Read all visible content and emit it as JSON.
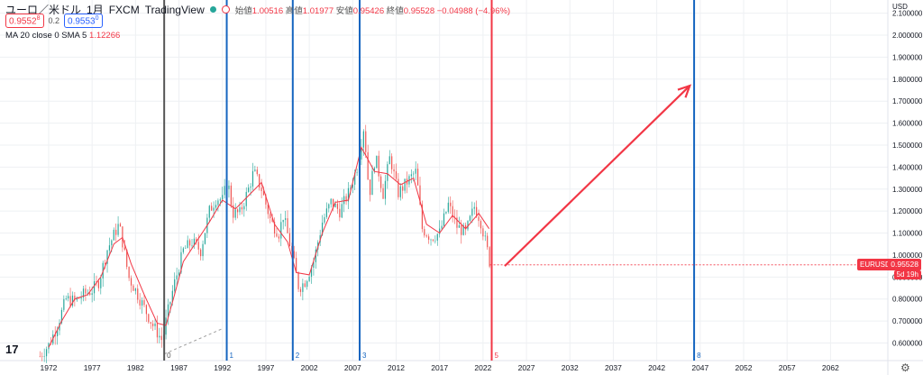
{
  "header": {
    "symbol": "ユーロ／米ドル",
    "interval": "1月",
    "exchange": "FXCM",
    "source": "TradingView",
    "ohlc": [
      {
        "label": "始値",
        "value": "1.00516"
      },
      {
        "label": "高値",
        "value": "1.01977"
      },
      {
        "label": "安値",
        "value": "0.95426"
      },
      {
        "label": "終値",
        "value": "0.95528"
      }
    ],
    "change": "−0.04988 (−4.96%)",
    "sell_price": "0.9552",
    "sell_sup": "8",
    "spread": "0.2",
    "buy_price": "0.9553",
    "buy_sup": "0",
    "indicator_label": "MA 20 close 0 SMA 5",
    "indicator_value": "1.12266",
    "logo": "17"
  },
  "price_axis": {
    "currency": "USD",
    "current_symbol": "EURUSD",
    "current_price": "0.95528",
    "countdown": "5d 19h"
  },
  "chart_data": {
    "type": "line",
    "title": "",
    "xlabel": "",
    "ylabel": "",
    "x_ticks": [
      1972,
      1977,
      1982,
      1987,
      1992,
      1997,
      2002,
      2007,
      2012,
      2017,
      2022,
      2027,
      2032,
      2037,
      2042,
      2047,
      2052,
      2057,
      2062
    ],
    "y_ticks": [
      "0.600000",
      "0.700000",
      "0.800000",
      "0.900000",
      "1.000000",
      "1.100000",
      "1.200000",
      "1.300000",
      "1.400000",
      "1.500000",
      "1.600000",
      "1.700000",
      "1.800000",
      "1.900000",
      "2.000000",
      "2.100000"
    ],
    "xlim": [
      1966.4,
      2068.6
    ],
    "ylim": [
      0.52,
      2.16
    ],
    "colors": {
      "up": "#26a69a",
      "down": "#ef5350",
      "ma": "#f23645",
      "vline_blue": "#1565c0",
      "vline_gray": "#555555",
      "vline_red": "#f23645",
      "arrow": "#f23645"
    },
    "series": [
      {
        "name": "EURUSD",
        "points": [
          [
            1971.0,
            0.54
          ],
          [
            1972.0,
            0.59
          ],
          [
            1973.0,
            0.68
          ],
          [
            1974.0,
            0.8
          ],
          [
            1975.0,
            0.79
          ],
          [
            1976.0,
            0.82
          ],
          [
            1977.0,
            0.84
          ],
          [
            1977.8,
            0.88
          ],
          [
            1978.7,
            1.02
          ],
          [
            1979.6,
            1.1
          ],
          [
            1980.1,
            1.14
          ],
          [
            1980.6,
            1.04
          ],
          [
            1981.2,
            0.9
          ],
          [
            1982.0,
            0.84
          ],
          [
            1983.0,
            0.76
          ],
          [
            1984.0,
            0.68
          ],
          [
            1985.1,
            0.61
          ],
          [
            1985.6,
            0.72
          ],
          [
            1986.4,
            0.86
          ],
          [
            1987.5,
            1.02
          ],
          [
            1988.5,
            1.06
          ],
          [
            1989.5,
            1.02
          ],
          [
            1990.5,
            1.2
          ],
          [
            1991.3,
            1.26
          ],
          [
            1992.0,
            1.25
          ],
          [
            1992.6,
            1.34
          ],
          [
            1993.2,
            1.19
          ],
          [
            1994.0,
            1.19
          ],
          [
            1995.0,
            1.3
          ],
          [
            1995.6,
            1.38
          ],
          [
            1996.5,
            1.3
          ],
          [
            1997.6,
            1.15
          ],
          [
            1998.5,
            1.1
          ],
          [
            1999.0,
            1.18
          ],
          [
            2000.0,
            1.01
          ],
          [
            2000.8,
            0.85
          ],
          [
            2001.5,
            0.88
          ],
          [
            2002.5,
            0.97
          ],
          [
            2003.5,
            1.15
          ],
          [
            2004.5,
            1.24
          ],
          [
            2005.5,
            1.2
          ],
          [
            2006.5,
            1.28
          ],
          [
            2007.5,
            1.4
          ],
          [
            2008.3,
            1.59
          ],
          [
            2008.9,
            1.27
          ],
          [
            2009.6,
            1.45
          ],
          [
            2010.5,
            1.28
          ],
          [
            2011.3,
            1.45
          ],
          [
            2012.2,
            1.28
          ],
          [
            2013.2,
            1.33
          ],
          [
            2014.3,
            1.38
          ],
          [
            2015.0,
            1.12
          ],
          [
            2016.0,
            1.08
          ],
          [
            2017.0,
            1.1
          ],
          [
            2018.0,
            1.23
          ],
          [
            2019.0,
            1.13
          ],
          [
            2020.0,
            1.1
          ],
          [
            2021.0,
            1.22
          ],
          [
            2021.7,
            1.16
          ],
          [
            2022.5,
            1.02
          ],
          [
            2022.8,
            0.96
          ]
        ]
      },
      {
        "name": "MA 20 close 0 SMA 5",
        "points": [
          [
            1972.0,
            0.58
          ],
          [
            1973.5,
            0.7
          ],
          [
            1975.0,
            0.8
          ],
          [
            1976.5,
            0.82
          ],
          [
            1978.0,
            0.9
          ],
          [
            1979.5,
            1.05
          ],
          [
            1980.5,
            1.08
          ],
          [
            1981.5,
            0.96
          ],
          [
            1983.0,
            0.82
          ],
          [
            1984.5,
            0.69
          ],
          [
            1985.5,
            0.68
          ],
          [
            1986.5,
            0.82
          ],
          [
            1987.5,
            0.97
          ],
          [
            1989.0,
            1.06
          ],
          [
            1990.5,
            1.15
          ],
          [
            1992.0,
            1.25
          ],
          [
            1993.5,
            1.21
          ],
          [
            1995.0,
            1.27
          ],
          [
            1996.5,
            1.33
          ],
          [
            1998.0,
            1.14
          ],
          [
            1999.5,
            1.06
          ],
          [
            2000.5,
            0.92
          ],
          [
            2002.0,
            0.91
          ],
          [
            2003.5,
            1.1
          ],
          [
            2005.0,
            1.24
          ],
          [
            2006.5,
            1.25
          ],
          [
            2008.0,
            1.49
          ],
          [
            2009.5,
            1.38
          ],
          [
            2011.0,
            1.37
          ],
          [
            2012.5,
            1.32
          ],
          [
            2014.0,
            1.35
          ],
          [
            2015.5,
            1.14
          ],
          [
            2017.0,
            1.1
          ],
          [
            2018.5,
            1.18
          ],
          [
            2020.0,
            1.12
          ],
          [
            2021.5,
            1.19
          ],
          [
            2022.7,
            1.12
          ]
        ]
      }
    ],
    "vertical_lines": [
      {
        "x": 1985.3,
        "label": "0",
        "color": "#555555"
      },
      {
        "x": 1992.5,
        "label": "1",
        "color": "#1565c0"
      },
      {
        "x": 2000.1,
        "label": "2",
        "color": "#1565c0"
      },
      {
        "x": 2007.8,
        "label": "3",
        "color": "#1565c0"
      },
      {
        "x": 2023.0,
        "label": "5",
        "color": "#f23645"
      },
      {
        "x": 2046.3,
        "label": "8",
        "color": "#1565c0"
      }
    ],
    "arrow": {
      "from": [
        2024.5,
        0.95
      ],
      "to": [
        2045.8,
        1.77
      ]
    },
    "dashed_line": {
      "from": [
        1985.3,
        0.55
      ],
      "to": [
        1992.0,
        0.665
      ]
    }
  }
}
